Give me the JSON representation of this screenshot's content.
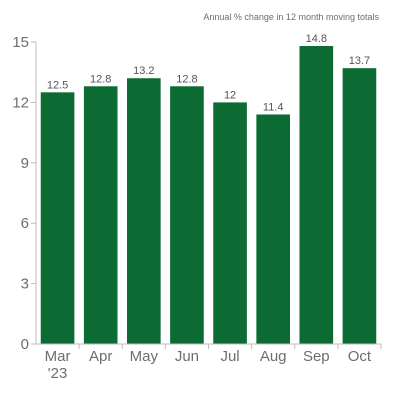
{
  "chart_data": {
    "type": "bar",
    "subtitle": "Annual % change in 12 month moving totals",
    "categories": [
      "Mar '23",
      "Apr",
      "May",
      "Jun",
      "Jul",
      "Aug",
      "Sep",
      "Oct"
    ],
    "category_lines": [
      [
        "Mar",
        "'23"
      ],
      [
        "Apr"
      ],
      [
        "May"
      ],
      [
        "Jun"
      ],
      [
        "Jul"
      ],
      [
        "Aug"
      ],
      [
        "Sep"
      ],
      [
        "Oct"
      ]
    ],
    "values": [
      12.5,
      12.8,
      13.2,
      12.8,
      12,
      11.4,
      14.8,
      13.7
    ],
    "value_labels": [
      "12.5",
      "12.8",
      "13.2",
      "12.8",
      "12",
      "11.4",
      "14.8",
      "13.7"
    ],
    "yticks": [
      "0",
      "3",
      "6",
      "9",
      "12",
      "15"
    ],
    "ylim": [
      0,
      15
    ],
    "grid": false,
    "bar_color": "#0b6b33",
    "axis_color": "#bdbdbd"
  }
}
